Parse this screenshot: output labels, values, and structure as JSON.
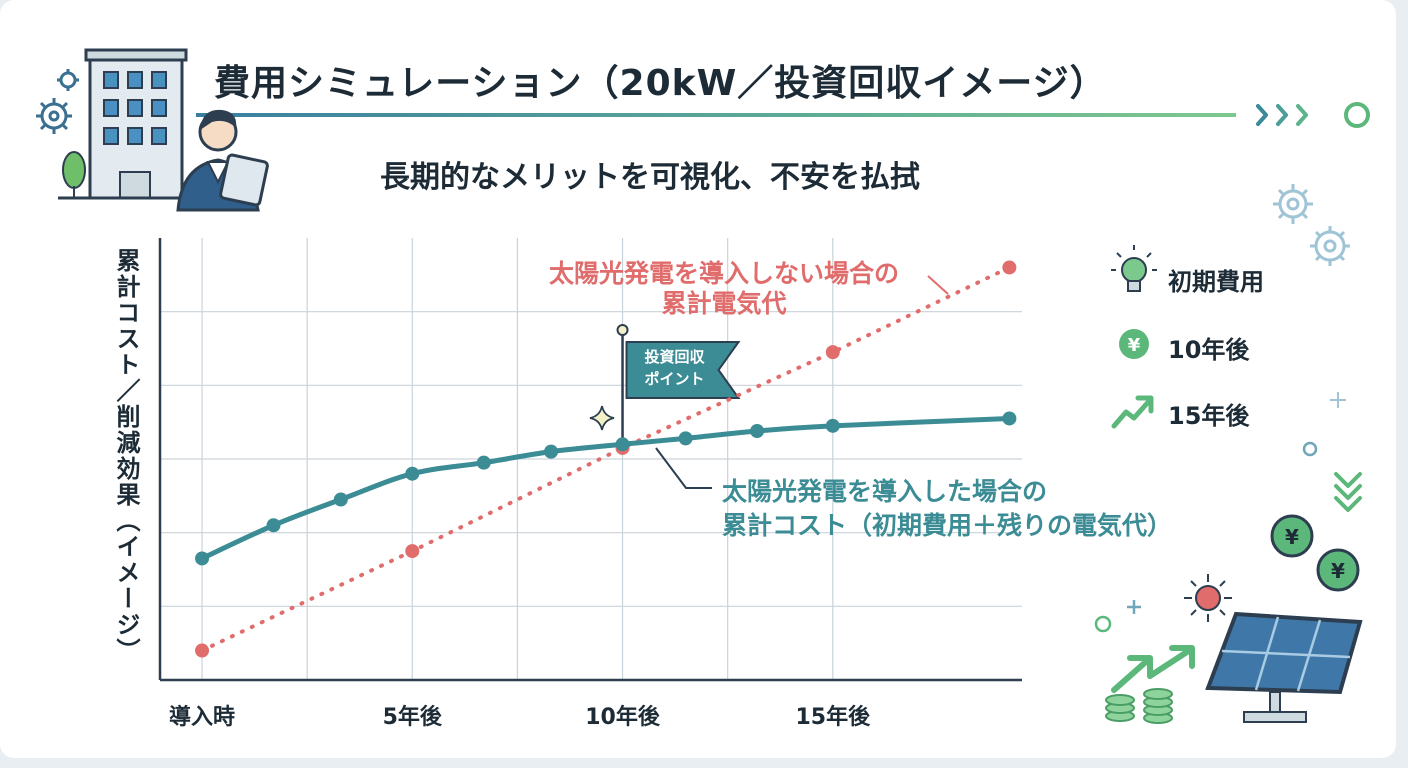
{
  "title": "費用シミュレーション（20kW／投資回収イメージ）",
  "subtitle": "長期的なメリットを可視化、不安を払拭",
  "legend": [
    {
      "label": "初期費用",
      "icon": "lightbulb-icon"
    },
    {
      "label": "10年後",
      "icon": "yen-coin-icon"
    },
    {
      "label": "15年後",
      "icon": "trend-up-icon"
    }
  ],
  "colors": {
    "solar": "#3c8c95",
    "no_solar": "#e06c6c",
    "accent_green": "#5cb87a",
    "text": "#1c2b36"
  },
  "chart_data": {
    "type": "line",
    "ylabel": "累計コスト／削減効果（イメージ）",
    "xlabel": "",
    "x_ticks": [
      {
        "x": 0,
        "label": "導入時"
      },
      {
        "x": 5,
        "label": "5年後"
      },
      {
        "x": 10,
        "label": "10年後"
      },
      {
        "x": 15,
        "label": "15年後"
      }
    ],
    "xlim": [
      -1,
      19.5
    ],
    "ylim": [
      0,
      6
    ],
    "grid": true,
    "series": [
      {
        "name": "太陽光発電を導入しない場合の累計電気代",
        "label_lines": [
          "太陽光発電を導入しない場合の",
          "累計電気代"
        ],
        "style": "dotted",
        "color": "#e06c6c",
        "x": [
          0,
          5,
          10,
          15,
          19.2
        ],
        "y": [
          0.4,
          1.75,
          3.15,
          4.45,
          5.6
        ]
      },
      {
        "name": "太陽光発電を導入した場合の累計コスト（初期費用＋残りの電気代）",
        "label_lines": [
          "太陽光発電を導入した場合の",
          "累計コスト（初期費用＋残りの電気代）"
        ],
        "style": "solid",
        "color": "#3c8c95",
        "x": [
          0,
          1.7,
          3.3,
          5,
          6.7,
          8.3,
          10,
          11.5,
          13.2,
          15,
          19.2
        ],
        "y": [
          1.65,
          2.1,
          2.45,
          2.8,
          2.95,
          3.1,
          3.2,
          3.28,
          3.38,
          3.45,
          3.55
        ]
      }
    ],
    "annotations": [
      {
        "text_lines": [
          "投資回収",
          "ポイント"
        ],
        "x": 10
      }
    ]
  }
}
